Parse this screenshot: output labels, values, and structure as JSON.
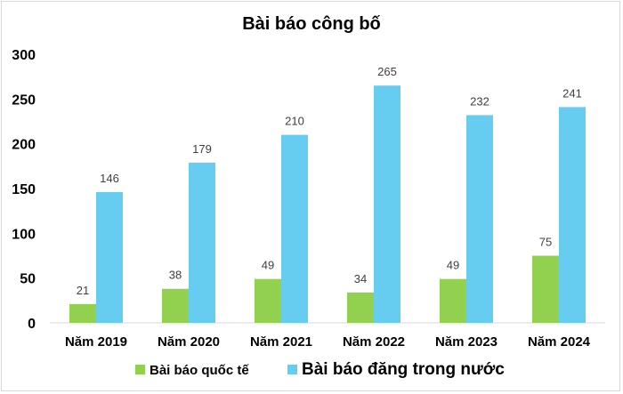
{
  "chart_data": {
    "type": "bar",
    "title": "Bài báo công bố",
    "categories": [
      "Năm 2019",
      "Năm 2020",
      "Năm 2021",
      "Năm 2022",
      "Năm 2023",
      "Năm 2024"
    ],
    "series": [
      {
        "name": "Bài báo quốc tế",
        "color": "#92d050",
        "values": [
          21,
          38,
          49,
          34,
          49,
          75
        ]
      },
      {
        "name": "Bài báo đăng trong nước",
        "color": "#66ccf0",
        "values": [
          146,
          179,
          210,
          265,
          232,
          241
        ]
      }
    ],
    "ylim": [
      0,
      300
    ],
    "yticks": [
      0,
      50,
      100,
      150,
      200,
      250,
      300
    ],
    "grid": false,
    "legend": "bottom",
    "data_labels": true
  }
}
